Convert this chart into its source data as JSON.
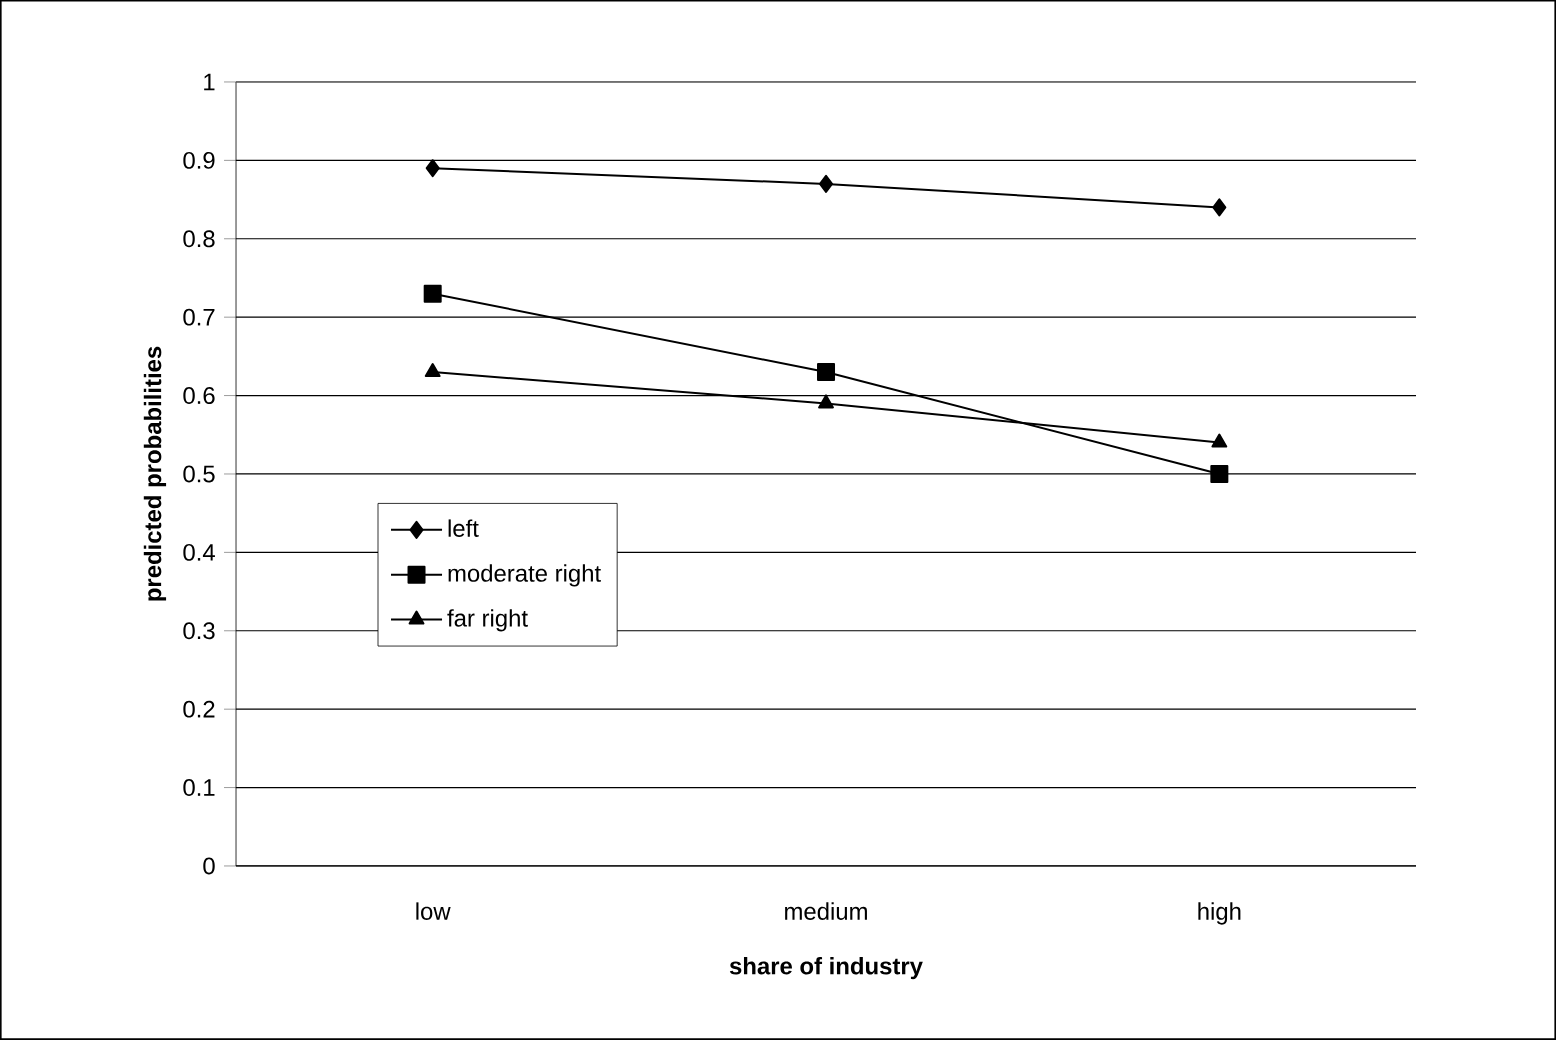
{
  "chart_data": {
    "type": "line",
    "xlabel": "share of industry",
    "ylabel": "predicted probabilities",
    "categories": [
      "low",
      "medium",
      "high"
    ],
    "ylim": [
      0,
      1
    ],
    "yticks": [
      0,
      0.1,
      0.2,
      0.3,
      0.4,
      0.5,
      0.6,
      0.7,
      0.8,
      0.9,
      1
    ],
    "grid": "y",
    "legend": "bottom left",
    "line_style": "solid",
    "series": [
      {
        "name": "left",
        "color": "#000000",
        "marker": "diamond",
        "values": [
          0.89,
          0.87,
          0.84
        ]
      },
      {
        "name": "moderate right",
        "color": "#000000",
        "marker": "square",
        "values": [
          0.73,
          0.63,
          0.5
        ]
      },
      {
        "name": "far right",
        "color": "#000000",
        "marker": "triangle",
        "values": [
          0.63,
          0.59,
          0.54
        ]
      }
    ]
  }
}
